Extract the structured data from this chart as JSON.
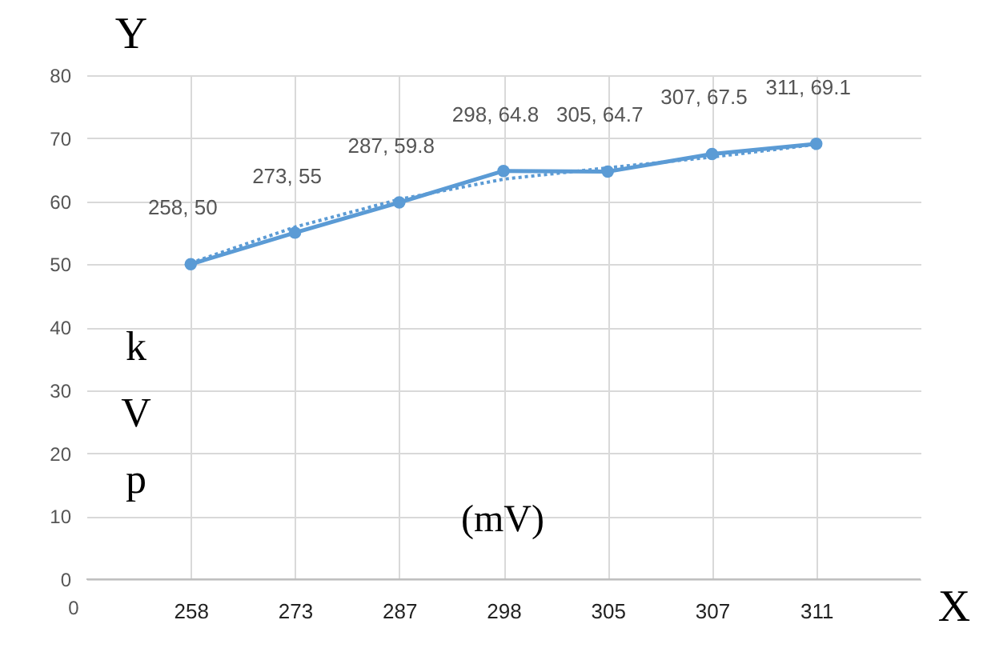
{
  "chart_data": {
    "type": "line",
    "xlabel": "X",
    "ylabel": "Y",
    "categories": [
      "258",
      "273",
      "287",
      "298",
      "305",
      "307",
      "311"
    ],
    "series": [
      {
        "color": "#5b9bd5",
        "marker": "circle",
        "line_style": "solid",
        "values": [
          50,
          55,
          59.8,
          64.8,
          64.7,
          67.5,
          69.1
        ],
        "value_labels": [
          "258, 50",
          "273, 55",
          "287, 59.8",
          "298, 64.8",
          "305, 64.7",
          "307, 67.5",
          "311, 69.1"
        ]
      },
      {
        "color": "#5b9bd5",
        "marker": "none",
        "line_style": "dotted",
        "values": [
          50.2,
          55.9,
          60.3,
          63.5,
          65.3,
          67.0,
          69.0
        ]
      }
    ],
    "ylim": [
      0,
      80
    ],
    "yticks": [
      0,
      10,
      20,
      30,
      40,
      50,
      60,
      70,
      80
    ],
    "grid": true,
    "annotations": [
      "0",
      "kVp",
      "(mV)"
    ]
  }
}
